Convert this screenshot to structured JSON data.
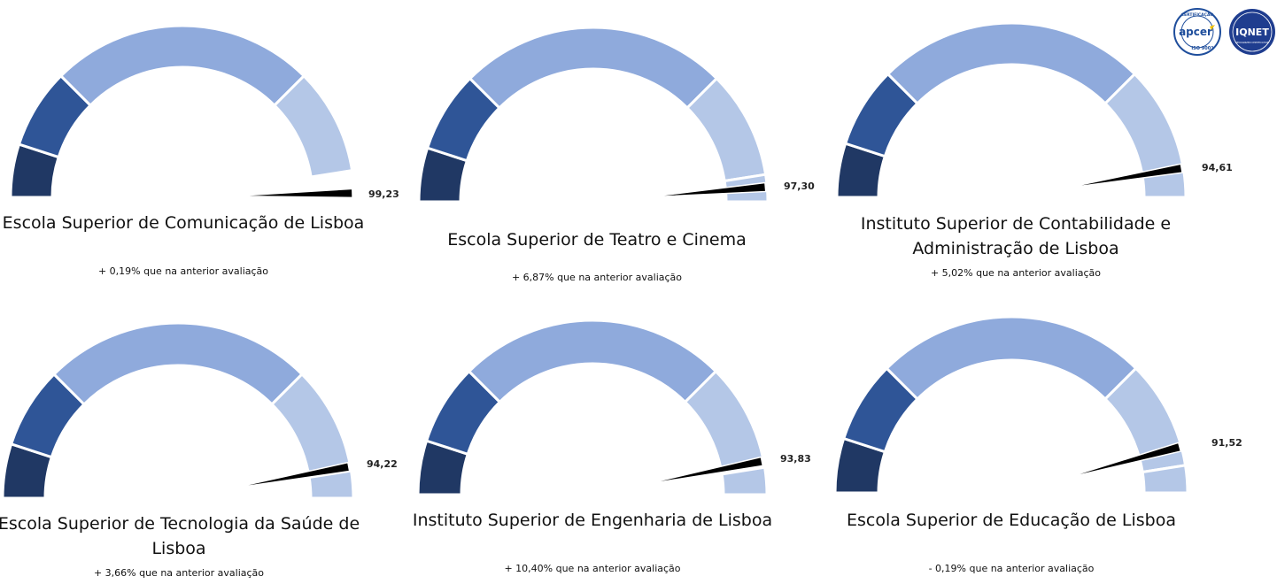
{
  "chart_data": [
    {
      "type": "gauge",
      "title": "Escola Superior de Comunicação de Lisboa",
      "value": 99.23,
      "value_label": "99,23",
      "change_text": "+ 0,19% que na anterior avaliação",
      "bands": [
        {
          "from": 0,
          "to": 10,
          "color": "#203864"
        },
        {
          "from": 10,
          "to": 25,
          "color": "#2f5597"
        },
        {
          "from": 25,
          "to": 75,
          "color": "#8faadc"
        },
        {
          "from": 75,
          "to": 95,
          "color": "#b4c7e7"
        }
      ]
    },
    {
      "type": "gauge",
      "title": "Escola Superior de Teatro e Cinema",
      "value": 97.3,
      "value_label": "97,30",
      "change_text": "+ 6,87% que na anterior avaliação",
      "bands": [
        {
          "from": 0,
          "to": 10,
          "color": "#203864"
        },
        {
          "from": 10,
          "to": 25,
          "color": "#2f5597"
        },
        {
          "from": 25,
          "to": 75,
          "color": "#8faadc"
        },
        {
          "from": 75,
          "to": 95,
          "color": "#b4c7e7"
        },
        {
          "from": 95,
          "to": 100,
          "color": "#b4c7e7"
        }
      ]
    },
    {
      "type": "gauge",
      "title": "Instituto Superior de Contabilidade e Administração de Lisboa",
      "value": 94.61,
      "value_label": "94,61",
      "change_text": "+ 5,02% que na anterior avaliação",
      "bands": [
        {
          "from": 0,
          "to": 10,
          "color": "#203864"
        },
        {
          "from": 10,
          "to": 25,
          "color": "#2f5597"
        },
        {
          "from": 25,
          "to": 75,
          "color": "#8faadc"
        },
        {
          "from": 75,
          "to": 95,
          "color": "#b4c7e7"
        },
        {
          "from": 95,
          "to": 100,
          "color": "#b4c7e7"
        }
      ]
    },
    {
      "type": "gauge",
      "title": "Escola Superior de Tecnologia da Saúde de Lisboa",
      "value": 94.22,
      "value_label": "94,22",
      "change_text": "+ 3,66% que na anterior avaliação",
      "bands": [
        {
          "from": 0,
          "to": 10,
          "color": "#203864"
        },
        {
          "from": 10,
          "to": 25,
          "color": "#2f5597"
        },
        {
          "from": 25,
          "to": 75,
          "color": "#8faadc"
        },
        {
          "from": 75,
          "to": 95,
          "color": "#b4c7e7"
        },
        {
          "from": 95,
          "to": 100,
          "color": "#b4c7e7"
        }
      ]
    },
    {
      "type": "gauge",
      "title": "Instituto Superior de Engenharia de Lisboa",
      "value": 93.83,
      "value_label": "93,83",
      "change_text": "+ 10,40% que na anterior avaliação",
      "bands": [
        {
          "from": 0,
          "to": 10,
          "color": "#203864"
        },
        {
          "from": 10,
          "to": 25,
          "color": "#2f5597"
        },
        {
          "from": 25,
          "to": 75,
          "color": "#8faadc"
        },
        {
          "from": 75,
          "to": 95,
          "color": "#b4c7e7"
        },
        {
          "from": 95,
          "to": 100,
          "color": "#b4c7e7"
        }
      ]
    },
    {
      "type": "gauge",
      "title": "Escola Superior de Educação de Lisboa",
      "value": 91.52,
      "value_label": "91,52",
      "change_text": "- 0,19% que na anterior avaliação",
      "bands": [
        {
          "from": 0,
          "to": 10,
          "color": "#203864"
        },
        {
          "from": 10,
          "to": 25,
          "color": "#2f5597"
        },
        {
          "from": 25,
          "to": 75,
          "color": "#8faadc"
        },
        {
          "from": 75,
          "to": 95,
          "color": "#b4c7e7"
        },
        {
          "from": 95,
          "to": 100,
          "color": "#b4c7e7"
        }
      ]
    }
  ],
  "logos": {
    "apcer": {
      "text": "apcer",
      "ring_text": "CERTIFICAÇÃO",
      "sub_text": "ISO 9001",
      "color": "#1f4e9c"
    },
    "iqnet": {
      "text": "IQNET",
      "sub_text": "RECOGNIZED CERTIFICATION",
      "color": "#1f3d8f"
    }
  }
}
